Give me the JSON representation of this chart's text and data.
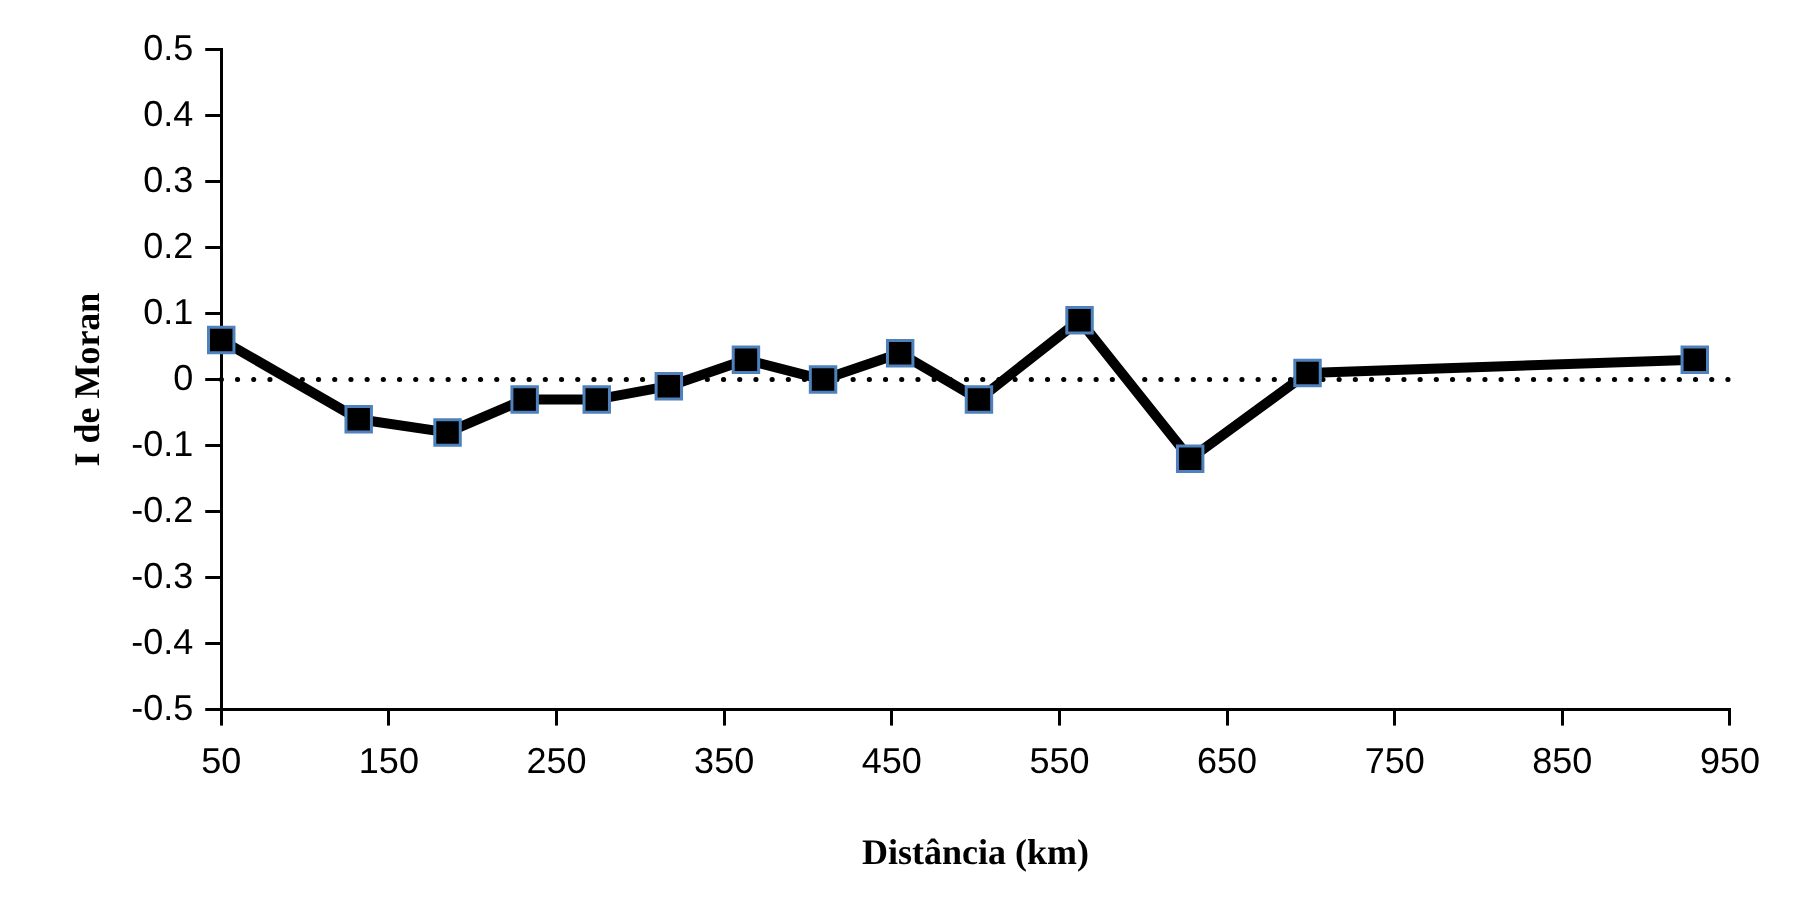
{
  "chart_data": {
    "type": "line",
    "xlabel": "Distância (km)",
    "ylabel": "I de Moran",
    "x": [
      50,
      132,
      185,
      231,
      274,
      317,
      363,
      409,
      455,
      502,
      562,
      628,
      698,
      929
    ],
    "series": [
      {
        "color": "#000000",
        "values": [
          0.06,
          -0.06,
          -0.08,
          -0.03,
          -0.03,
          -0.01,
          0.03,
          0,
          0.04,
          -0.03,
          0.09,
          -0.12,
          0.01,
          0.03
        ]
      }
    ],
    "xlim": [
      50,
      950
    ],
    "xticks": [
      50,
      150,
      250,
      350,
      450,
      550,
      650,
      750,
      850,
      950
    ],
    "ylim": [
      -0.5,
      0.5
    ],
    "yticks": [
      -0.5,
      -0.4,
      -0.3,
      -0.2,
      -0.1,
      0,
      0.1,
      0.2,
      0.3,
      0.4,
      0.5
    ],
    "ref_lines": [
      {
        "axis": "y",
        "value": 0,
        "color": "#000000",
        "line_style": "dotted"
      }
    ],
    "grid": false,
    "legend": false,
    "marker": "square",
    "line_style": "solid"
  }
}
